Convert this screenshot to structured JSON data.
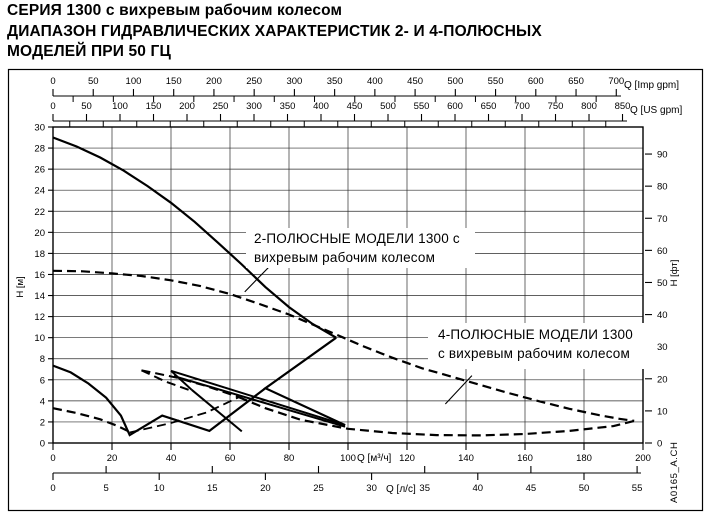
{
  "title": {
    "line1": "СЕРИЯ 1300 с вихревым рабочим колесом",
    "line2": "ДИАПАЗОН ГИДРАВЛИЧЕСКИХ ХАРАКТЕРИСТИК 2- И 4-ПОЛЮСНЫХ",
    "line3": "МОДЕЛЕЙ ПРИ 50 ГЦ"
  },
  "watermark": "A0165_A.CH",
  "chart_data": {
    "type": "line",
    "title": "Диапазон гидравлических характеристик, серия 1300, 50 Гц",
    "x_range_m3h": [
      0,
      200
    ],
    "y_range_m": [
      0,
      30
    ],
    "grid": {
      "x_step_m3h": 20,
      "y_step_m": 2,
      "on": true
    },
    "x_axes": [
      {
        "id": "imp_gpm",
        "label": "Q [Imp gpm]",
        "tick_min": 0,
        "tick_max": 700,
        "tick_step": 50,
        "minor_step": 25,
        "units_per_m3h": 3.6661
      },
      {
        "id": "us_gpm",
        "label": "Q [US gpm]",
        "tick_min": 0,
        "tick_max": 850,
        "tick_step": 50,
        "minor_step": 25,
        "units_per_m3h": 4.4029
      },
      {
        "id": "m3h",
        "label": "Q [м³/ч]",
        "tick_min": 0,
        "tick_max": 200,
        "tick_step": 20,
        "units_per_m3h": 1
      },
      {
        "id": "ls",
        "label": "Q [л/с]",
        "tick_min": 0,
        "tick_max": 55,
        "tick_step": 5,
        "units_per_m3h": 0.27778
      }
    ],
    "y_axes": [
      {
        "id": "h_m",
        "label": "H [м]",
        "tick_min": 0,
        "tick_max": 30,
        "tick_step": 2,
        "units_per_m": 1
      },
      {
        "id": "h_ft",
        "label": "H [фт]",
        "tick_min": 0,
        "tick_max": 90,
        "tick_step": 10,
        "units_per_m": 3.2808
      }
    ],
    "series": [
      {
        "name": "2-pole envelope upper",
        "style": "solid",
        "width": 2.2,
        "points": [
          [
            0,
            29
          ],
          [
            8,
            28.15
          ],
          [
            16,
            27.1
          ],
          [
            24,
            25.85
          ],
          [
            32,
            24.4
          ],
          [
            40,
            22.8
          ],
          [
            48,
            21.0
          ],
          [
            56,
            19.0
          ],
          [
            64,
            16.95
          ],
          [
            72,
            14.8
          ],
          [
            80,
            12.9
          ],
          [
            88,
            11.3
          ],
          [
            96,
            10.0
          ]
        ]
      },
      {
        "name": "2-pole envelope notch",
        "style": "solid",
        "width": 2.2,
        "points": [
          [
            96,
            10.0
          ],
          [
            72,
            5.2
          ],
          [
            99,
            1.7
          ]
        ]
      },
      {
        "name": "2-pole mid line a",
        "style": "solid",
        "width": 2.0,
        "points": [
          [
            40,
            6.85
          ],
          [
            99,
            1.7
          ]
        ]
      },
      {
        "name": "2-pole mid line b",
        "style": "solid",
        "width": 2.0,
        "points": [
          [
            41,
            6.35
          ],
          [
            99,
            1.55
          ]
        ]
      },
      {
        "name": "2-pole small steep a",
        "style": "solid",
        "width": 2.0,
        "points": [
          [
            40,
            6.85
          ],
          [
            47,
            5.05
          ]
        ]
      },
      {
        "name": "2-pole small steep b",
        "style": "solid",
        "width": 2.0,
        "points": [
          [
            47,
            5.05
          ],
          [
            64,
            1.1
          ]
        ]
      },
      {
        "name": "2-pole small envelope",
        "style": "solid",
        "width": 2.2,
        "points": [
          [
            0,
            7.35
          ],
          [
            6,
            6.7
          ],
          [
            12,
            5.65
          ],
          [
            18,
            4.3
          ],
          [
            23,
            2.6
          ],
          [
            26,
            0.75
          ],
          [
            37,
            2.6
          ],
          [
            53,
            1.15
          ],
          [
            72,
            5.2
          ]
        ]
      },
      {
        "name": "4-pole envelope upper",
        "style": "dashed",
        "width": 2.2,
        "points": [
          [
            0,
            16.35
          ],
          [
            10,
            16.3
          ],
          [
            20,
            16.1
          ],
          [
            30,
            15.85
          ],
          [
            40,
            15.45
          ],
          [
            50,
            14.9
          ],
          [
            60,
            14.15
          ],
          [
            70,
            13.2
          ],
          [
            80,
            12.2
          ],
          [
            88,
            11.25
          ],
          [
            96,
            10.3
          ],
          [
            105,
            9.2
          ],
          [
            115,
            8.1
          ],
          [
            125,
            7.1
          ],
          [
            135,
            6.3
          ],
          [
            145,
            5.5
          ],
          [
            155,
            4.7
          ],
          [
            165,
            3.95
          ],
          [
            175,
            3.25
          ],
          [
            185,
            2.65
          ],
          [
            192,
            2.3
          ],
          [
            197,
            2.1
          ]
        ]
      },
      {
        "name": "4-pole envelope lower",
        "style": "dashed",
        "width": 2.2,
        "points": [
          [
            63,
            4.35
          ],
          [
            72,
            3.3
          ],
          [
            84,
            2.2
          ],
          [
            100,
            1.35
          ],
          [
            115,
            0.95
          ],
          [
            130,
            0.75
          ],
          [
            145,
            0.72
          ],
          [
            160,
            0.85
          ],
          [
            175,
            1.15
          ],
          [
            190,
            1.6
          ],
          [
            197,
            2.1
          ]
        ]
      },
      {
        "name": "4-pole wedge upper",
        "style": "dashed",
        "width": 2.0,
        "points": [
          [
            30,
            6.9
          ],
          [
            42,
            6.2
          ],
          [
            52,
            5.4
          ],
          [
            63,
            4.35
          ]
        ]
      },
      {
        "name": "4-pole wedge mid",
        "style": "dashed",
        "width": 2.0,
        "points": [
          [
            30,
            6.9
          ],
          [
            38,
            5.85
          ],
          [
            47,
            4.95
          ]
        ]
      },
      {
        "name": "4-pole wedge lower",
        "style": "dashed",
        "width": 1.8,
        "points": [
          [
            26,
            1.0
          ],
          [
            40,
            1.9
          ],
          [
            52,
            2.9
          ],
          [
            63,
            4.35
          ]
        ]
      },
      {
        "name": "4-pole small left",
        "style": "dashed",
        "width": 2.2,
        "points": [
          [
            0,
            3.3
          ],
          [
            8,
            2.85
          ],
          [
            16,
            2.25
          ],
          [
            22,
            1.6
          ],
          [
            26,
            1.05
          ]
        ]
      }
    ],
    "annotations": [
      {
        "id": "2pole",
        "lines": [
          "2-ПОЛЮСНЫЕ МОДЕЛИ 1300 с",
          "вихревым рабочим колесом"
        ],
        "leader_m3h_m": [
          [
            65,
            14.35
          ],
          [
            74.9,
            17.2
          ]
        ]
      },
      {
        "id": "4pole",
        "lines": [
          "4-ПОЛЮСНЫЕ МОДЕЛИ 1300",
          "с вихревым рабочим колесом"
        ],
        "leader_m3h_m": [
          [
            133,
            3.7
          ],
          [
            142,
            6.4
          ]
        ]
      }
    ],
    "legend_position": "none"
  }
}
